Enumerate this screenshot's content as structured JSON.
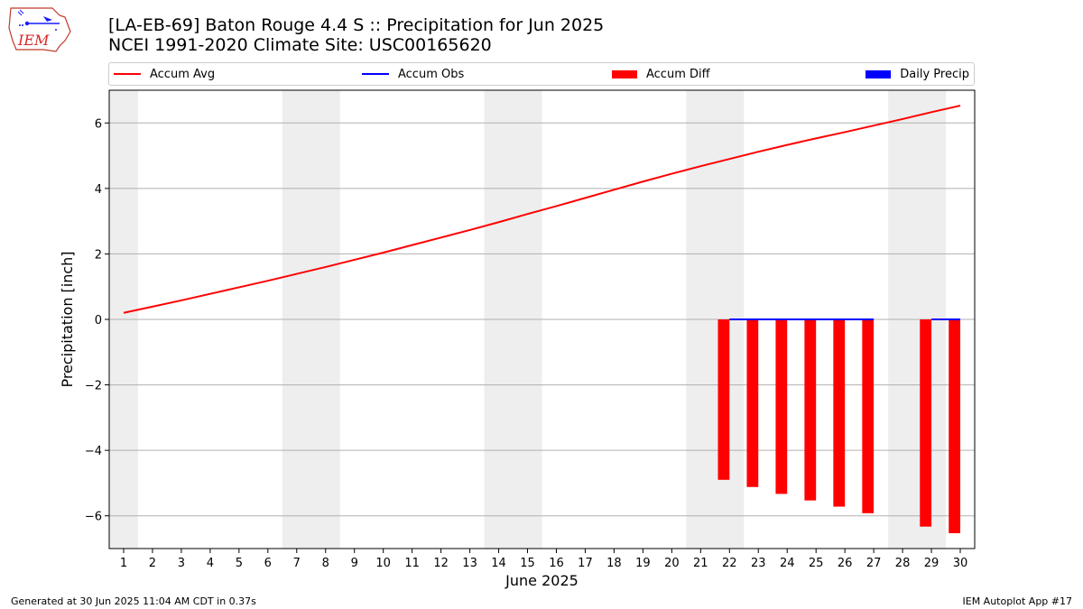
{
  "header": {
    "title": "[LA-EB-69] Baton Rouge 4.4 S :: Precipitation for Jun 2025",
    "subtitle": "NCEI 1991-2020 Climate Site: USC00165620",
    "logo_text": "IEM"
  },
  "footer": {
    "left": "Generated at 30 Jun 2025 11:04 AM CDT in 0.37s",
    "right": "IEM Autoplot App #17"
  },
  "chart_data": {
    "type": "line",
    "title": "[LA-EB-69] Baton Rouge 4.4 S :: Precipitation for Jun 2025",
    "xlabel": "June 2025",
    "ylabel": "Precipitation [inch]",
    "xlim": [
      0.5,
      30.5
    ],
    "ylim": [
      -7.0,
      7.0
    ],
    "x_ticks": [
      1,
      2,
      3,
      4,
      5,
      6,
      7,
      8,
      9,
      10,
      11,
      12,
      13,
      14,
      15,
      16,
      17,
      18,
      19,
      20,
      21,
      22,
      23,
      24,
      25,
      26,
      27,
      28,
      29,
      30
    ],
    "y_ticks": [
      -6,
      -4,
      -2,
      0,
      2,
      4,
      6
    ],
    "y_tick_labels": [
      "−6",
      "−4",
      "−2",
      "0",
      "2",
      "4",
      "6"
    ],
    "grid": "horizontal",
    "legend_position": "top",
    "weekend_shading": [
      [
        0.5,
        1.5
      ],
      [
        6.5,
        8.5
      ],
      [
        13.5,
        15.5
      ],
      [
        20.5,
        22.5
      ],
      [
        27.5,
        29.5
      ]
    ],
    "series": [
      {
        "name": "Accum Avg",
        "type": "line",
        "color": "#ff0000",
        "x": [
          1,
          2,
          3,
          4,
          5,
          6,
          7,
          8,
          9,
          10,
          11,
          12,
          13,
          14,
          15,
          16,
          17,
          18,
          19,
          20,
          21,
          22,
          23,
          24,
          25,
          26,
          27,
          28,
          29,
          30
        ],
        "values": [
          0.2,
          0.39,
          0.58,
          0.78,
          0.98,
          1.18,
          1.39,
          1.6,
          1.82,
          2.04,
          2.27,
          2.5,
          2.73,
          2.97,
          3.22,
          3.46,
          3.71,
          3.96,
          4.21,
          4.45,
          4.68,
          4.9,
          5.12,
          5.33,
          5.53,
          5.72,
          5.92,
          6.12,
          6.33,
          6.53
        ]
      },
      {
        "name": "Accum Obs",
        "type": "line",
        "color": "#0000ff",
        "segments": [
          {
            "x": [
              22,
              23,
              24,
              25,
              26,
              27
            ],
            "values": [
              0,
              0,
              0,
              0,
              0,
              0
            ]
          },
          {
            "x": [
              29,
              30
            ],
            "values": [
              0,
              0
            ]
          }
        ]
      },
      {
        "name": "Accum Diff",
        "type": "bar",
        "color": "#ff0000",
        "x": [
          22,
          23,
          24,
          25,
          26,
          27,
          29,
          30
        ],
        "values": [
          -4.9,
          -5.12,
          -5.33,
          -5.53,
          -5.72,
          -5.92,
          -6.33,
          -6.53
        ]
      },
      {
        "name": "Daily Precip",
        "type": "bar",
        "color": "#0000ff",
        "x": [],
        "values": []
      }
    ]
  }
}
